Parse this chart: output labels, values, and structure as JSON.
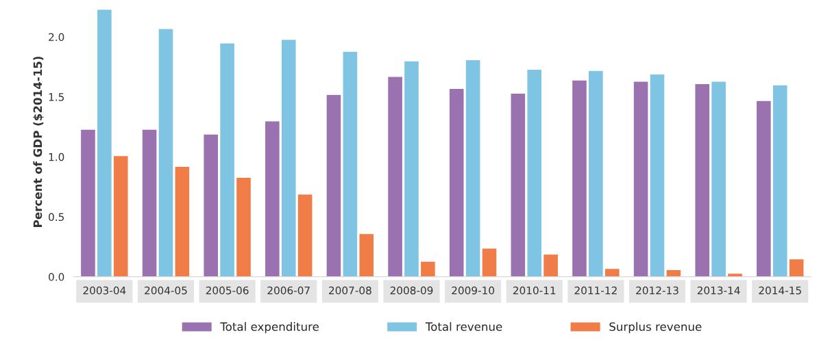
{
  "chart_data": {
    "type": "bar",
    "ylabel": "Percent of GDP ($2014-15)",
    "categories": [
      "2003-04",
      "2004-05",
      "2005-06",
      "2006-07",
      "2007-08",
      "2008-09",
      "2009-10",
      "2010-11",
      "2011-12",
      "2012-13",
      "2013-14",
      "2014-15"
    ],
    "series": [
      {
        "name": "Total expenditure",
        "color": "#9b72b0",
        "values": [
          1.23,
          1.23,
          1.19,
          1.3,
          1.52,
          1.67,
          1.57,
          1.53,
          1.64,
          1.63,
          1.61,
          1.47
        ]
      },
      {
        "name": "Total revenue",
        "color": "#7fc4e3",
        "values": [
          2.23,
          2.07,
          1.95,
          1.98,
          1.88,
          1.8,
          1.81,
          1.73,
          1.72,
          1.69,
          1.63,
          1.6
        ]
      },
      {
        "name": "Surplus revenue",
        "color": "#f07c48",
        "values": [
          1.01,
          0.92,
          0.83,
          0.69,
          0.36,
          0.13,
          0.24,
          0.19,
          0.07,
          0.06,
          0.03,
          0.15
        ]
      }
    ],
    "ylim": [
      0,
      2.25
    ],
    "yticks": [
      {
        "value": 0,
        "label": "0.0"
      },
      {
        "value": 0.5,
        "label": "0.5"
      },
      {
        "value": 1,
        "label": "1.0"
      },
      {
        "value": 1.5,
        "label": "1.5"
      },
      {
        "value": 2,
        "label": "2.0"
      }
    ],
    "grid": false,
    "legend": "bottom"
  }
}
